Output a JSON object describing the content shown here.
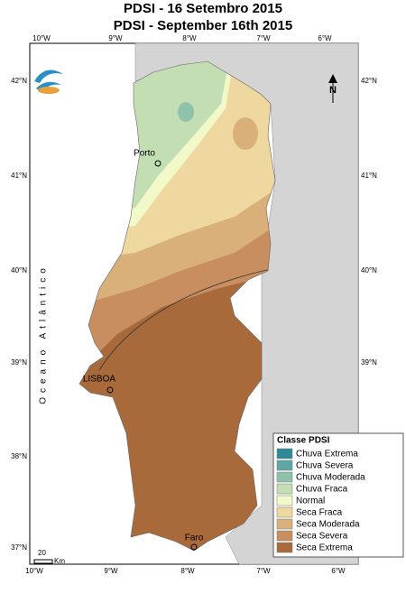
{
  "header": {
    "title": "PDSI - 16 Setembro 2015",
    "subtitle": "PDSI - September 16th 2015"
  },
  "longitude_labels_top": [
    "10°W",
    "9°W",
    "8°W",
    "7°W",
    "6°W"
  ],
  "longitude_labels_bottom": [
    "10°W",
    "9°W",
    "8°W",
    "7°W",
    "6°W"
  ],
  "latitude_labels_left": [
    "42°N",
    "41°N",
    "40°N",
    "39°N",
    "38°N",
    "37°N"
  ],
  "latitude_labels_right": [
    "42°N",
    "41°N",
    "40°N",
    "39°N"
  ],
  "cities": [
    "Porto",
    "LISBOA",
    "Faro"
  ],
  "ocean_label": "Oceano Atlântico",
  "legend": {
    "title": "Classe PDSI",
    "items": [
      {
        "name": "Chuva Extrema",
        "color": "#2f8a98"
      },
      {
        "name": "Chuva Severa",
        "color": "#5fa6a6"
      },
      {
        "name": "Chuva Moderada",
        "color": "#8fc2aa"
      },
      {
        "name": "Chuva Fraca",
        "color": "#c3deb3"
      },
      {
        "name": "Normal",
        "color": "#f2f9c9"
      },
      {
        "name": "Seca Fraca",
        "color": "#efd7a0"
      },
      {
        "name": "Seca Moderada",
        "color": "#d9b07a"
      },
      {
        "name": "Seca Severa",
        "color": "#c88e5f"
      },
      {
        "name": "Seca Extrema",
        "color": "#a8693b"
      }
    ]
  },
  "scale_bar": {
    "value": "20",
    "unit": "Km"
  }
}
